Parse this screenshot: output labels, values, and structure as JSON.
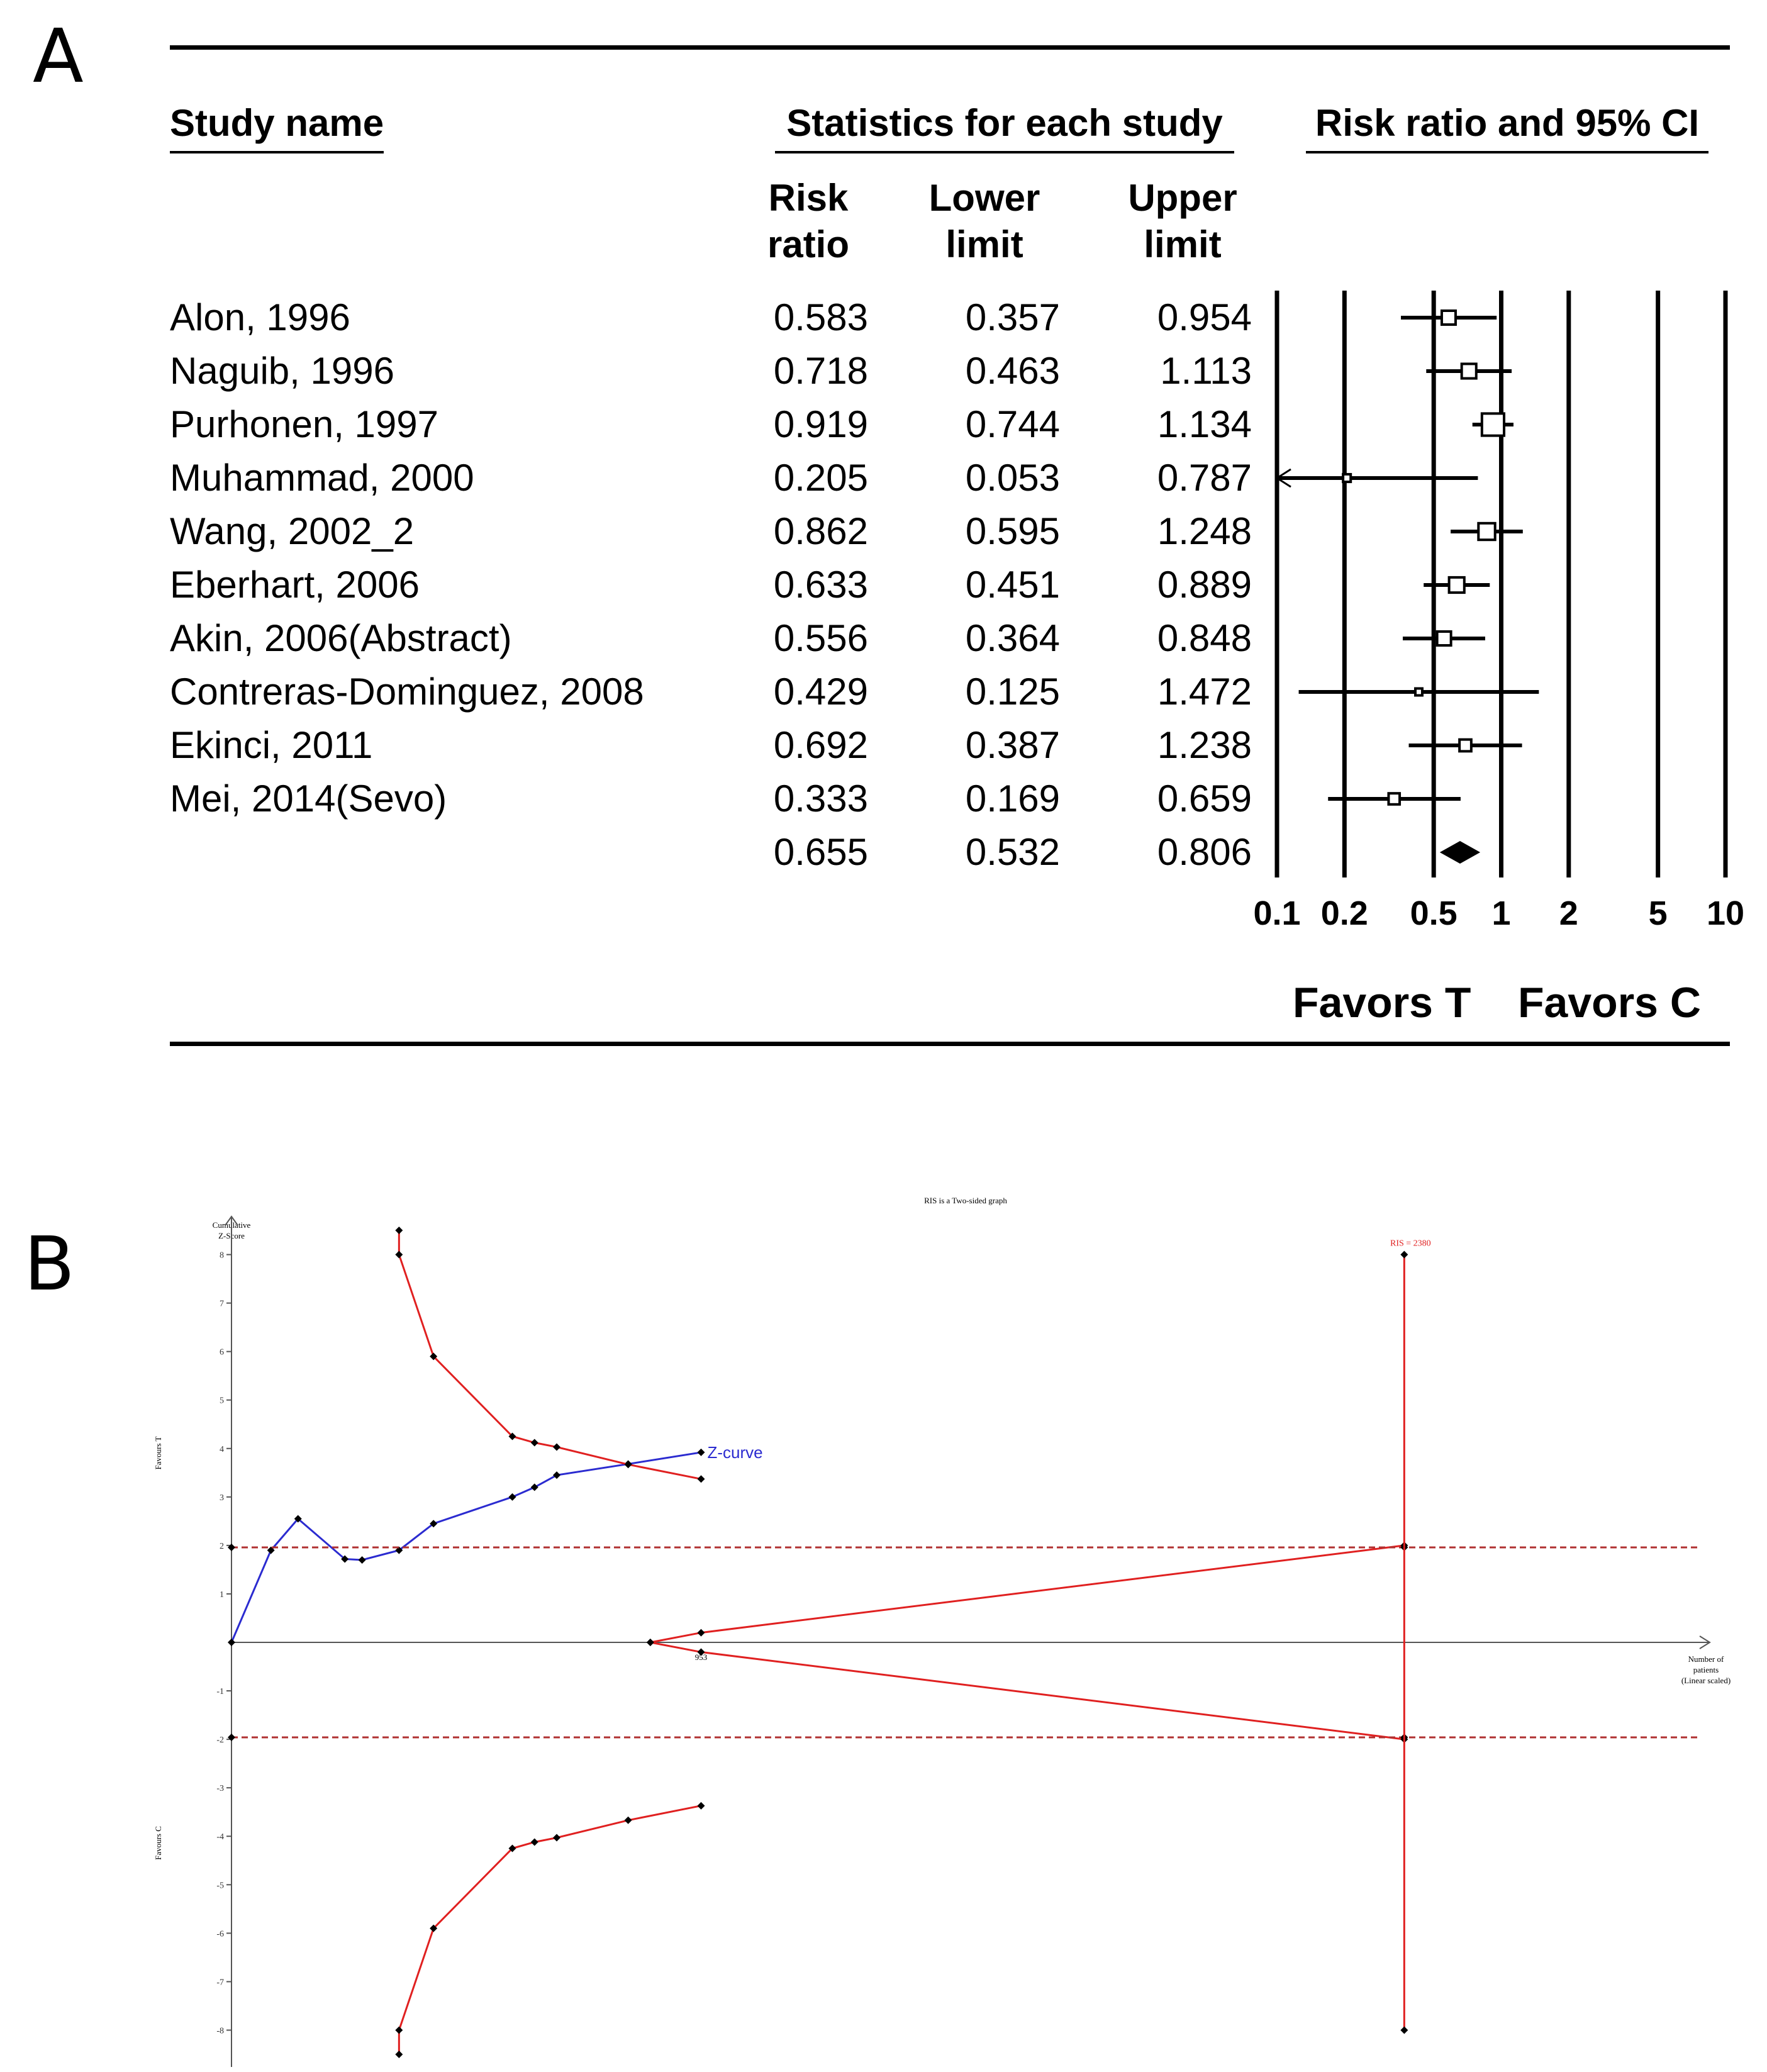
{
  "panel_a": {
    "label": "A",
    "headers": {
      "study_name": "Study name",
      "statistics": "Statistics for each study",
      "plot": "Risk ratio and 95% CI"
    },
    "columns": {
      "risk_ratio": "Risk ratio",
      "lower_limit": "Lower limit",
      "upper_limit": "Upper limit"
    },
    "favors_left": "Favors T",
    "favors_right": "Favors C"
  },
  "panel_b": {
    "label": "B",
    "title": "RIS is a Two-sided graph",
    "y_axis_title_line1": "Cumulative",
    "y_axis_title_line2": "Z-Score",
    "favours_t": "Favours T",
    "favours_c": "Favours C",
    "x_axis_title_line1": "Number of",
    "x_axis_title_line2": "patients",
    "x_axis_title_line3": "(Linear scaled)",
    "z_curve_label": "Z-curve",
    "ris_label": "RIS = 2380",
    "x_tick_label": "953"
  },
  "colors": {
    "z_curve": "#2b2bd0",
    "boundary": "#e02020",
    "axis": "#555555",
    "ink": "#000000"
  },
  "chart_data": [
    {
      "type": "forest",
      "scale": "log",
      "x_ticks": [
        "0.1",
        "0.2",
        "0.5",
        "1",
        "2",
        "5",
        "10"
      ],
      "x_tick_values": [
        0.1,
        0.2,
        0.5,
        1,
        2,
        5,
        10
      ],
      "xlim": [
        0.1,
        10
      ],
      "studies": [
        {
          "name": "Alon, 1996",
          "rr": 0.583,
          "lower": 0.357,
          "upper": 0.954,
          "rr_text": "0.583",
          "lower_text": "0.357",
          "upper_text": "0.954",
          "weight": 1.0
        },
        {
          "name": "Naguib, 1996",
          "rr": 0.718,
          "lower": 0.463,
          "upper": 1.113,
          "rr_text": "0.718",
          "lower_text": "0.463",
          "upper_text": "1.113",
          "weight": 1.05
        },
        {
          "name": "Purhonen, 1997",
          "rr": 0.919,
          "lower": 0.744,
          "upper": 1.134,
          "rr_text": "0.919",
          "lower_text": "0.744",
          "upper_text": "1.134",
          "weight": 1.6
        },
        {
          "name": "Muhammad, 2000",
          "rr": 0.205,
          "lower": 0.053,
          "upper": 0.787,
          "rr_text": "0.205",
          "lower_text": "0.053",
          "upper_text": "0.787",
          "weight": 0.55,
          "lower_arrow": true
        },
        {
          "name": "Wang, 2002_2",
          "rr": 0.862,
          "lower": 0.595,
          "upper": 1.248,
          "rr_text": "0.862",
          "lower_text": "0.595",
          "upper_text": "1.248",
          "weight": 1.2
        },
        {
          "name": "Eberhart, 2006",
          "rr": 0.633,
          "lower": 0.451,
          "upper": 0.889,
          "rr_text": "0.633",
          "lower_text": "0.451",
          "upper_text": "0.889",
          "weight": 1.1
        },
        {
          "name": "Akin, 2006(Abstract)",
          "rr": 0.556,
          "lower": 0.364,
          "upper": 0.848,
          "rr_text": "0.556",
          "lower_text": "0.364",
          "upper_text": "0.848",
          "weight": 1.0
        },
        {
          "name": "Contreras-Dominguez, 2008",
          "rr": 0.429,
          "lower": 0.125,
          "upper": 1.472,
          "rr_text": "0.429",
          "lower_text": "0.125",
          "upper_text": "1.472",
          "weight": 0.5
        },
        {
          "name": "Ekinci, 2011",
          "rr": 0.692,
          "lower": 0.387,
          "upper": 1.238,
          "rr_text": "0.692",
          "lower_text": "0.387",
          "upper_text": "1.238",
          "weight": 0.85
        },
        {
          "name": "Mei, 2014(Sevo)",
          "rr": 0.333,
          "lower": 0.169,
          "upper": 0.659,
          "rr_text": "0.333",
          "lower_text": "0.169",
          "upper_text": "0.659",
          "weight": 0.8
        }
      ],
      "pooled": {
        "rr": 0.655,
        "lower": 0.532,
        "upper": 0.806,
        "rr_text": "0.655",
        "lower_text": "0.532",
        "upper_text": "0.806"
      }
    },
    {
      "type": "line",
      "title": "RIS is a Two-sided graph",
      "ylabel": "Cumulative Z-Score",
      "xlabel": "Number of patients (Linear scaled)",
      "xlim": [
        0,
        3000
      ],
      "ylim": [
        -8.5,
        8.5
      ],
      "y_ticks": [
        -8,
        -7,
        -6,
        -5,
        -4,
        -3,
        -2,
        -1,
        1,
        2,
        3,
        4,
        5,
        6,
        7,
        8
      ],
      "ris": 2380,
      "series": [
        {
          "name": "Z-curve",
          "x": [
            0,
            80,
            135,
            230,
            265,
            340,
            410,
            570,
            615,
            660,
            805,
            953
          ],
          "y": [
            0,
            1.9,
            2.55,
            1.72,
            1.7,
            1.9,
            2.45,
            3.0,
            3.2,
            3.45,
            3.68,
            3.92
          ]
        },
        {
          "name": "Upper monitoring boundary",
          "x": [
            340,
            340,
            410,
            570,
            615,
            660,
            805,
            953
          ],
          "y": [
            8.5,
            8.0,
            5.9,
            4.25,
            4.12,
            4.03,
            3.67,
            3.37
          ]
        },
        {
          "name": "Lower monitoring boundary",
          "x": [
            340,
            340,
            410,
            570,
            615,
            660,
            805,
            953
          ],
          "y": [
            -8.5,
            -8.0,
            -5.9,
            -4.25,
            -4.12,
            -4.03,
            -3.67,
            -3.37
          ]
        },
        {
          "name": "Upper futility wedge",
          "x": [
            850,
            953,
            2380
          ],
          "y": [
            0,
            0.2,
            2.0
          ]
        },
        {
          "name": "Lower futility wedge",
          "x": [
            850,
            953,
            2380
          ],
          "y": [
            0,
            -0.2,
            -2.0
          ]
        },
        {
          "name": "Conventional boundary (+1.96)",
          "x": [
            0,
            2980
          ],
          "y": [
            1.96,
            1.96
          ]
        },
        {
          "name": "Conventional boundary (-1.96)",
          "x": [
            0,
            2980
          ],
          "y": [
            -1.96,
            -1.96
          ]
        }
      ]
    }
  ]
}
